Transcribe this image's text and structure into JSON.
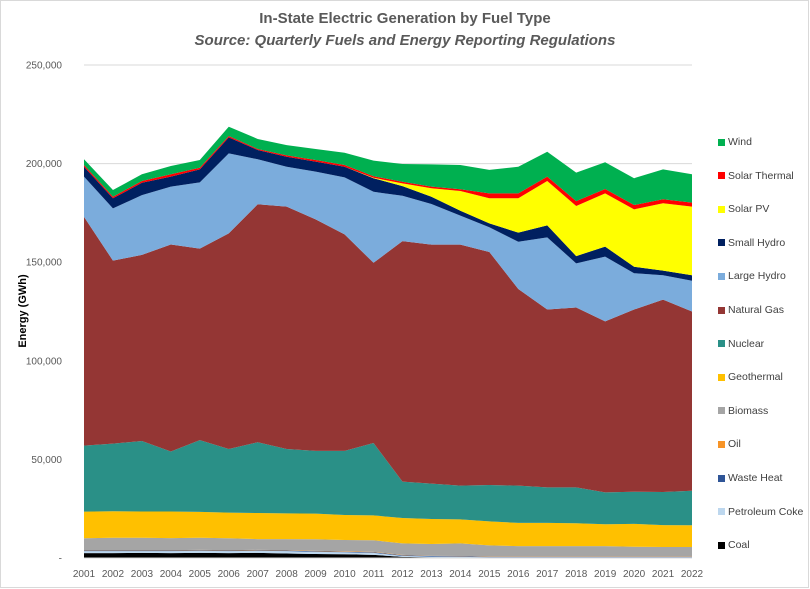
{
  "chart_data": {
    "type": "area",
    "stacked": true,
    "title": "In-State Electric Generation by Fuel Type",
    "subtitle": "Source: Quarterly Fuels and Energy Reporting Regulations",
    "xlabel": "",
    "ylabel": "Energy (GWh)",
    "ylim": [
      0,
      250000
    ],
    "yticks": [
      0,
      50000,
      100000,
      150000,
      200000,
      250000
    ],
    "ytick_labels": [
      "-",
      "50,000",
      "100,000",
      "150,000",
      "200,000",
      "250,000"
    ],
    "grid": true,
    "legend_position": "right",
    "categories": [
      "2001",
      "2002",
      "2003",
      "2004",
      "2005",
      "2006",
      "2007",
      "2008",
      "2009",
      "2010",
      "2011",
      "2012",
      "2013",
      "2014",
      "2015",
      "2016",
      "2017",
      "2018",
      "2019",
      "2020",
      "2021",
      "2022"
    ],
    "series": [
      {
        "name": "Coal",
        "color": "#000000",
        "values": [
          2500,
          2500,
          2600,
          2500,
          2600,
          2500,
          2600,
          2300,
          2000,
          1900,
          1600,
          600,
          300,
          200,
          100,
          100,
          100,
          100,
          100,
          100,
          100,
          100
        ]
      },
      {
        "name": "Petroleum Coke",
        "color": "#BDD7EE",
        "values": [
          1000,
          1000,
          900,
          1000,
          1000,
          1000,
          1000,
          1200,
          1100,
          1000,
          1000,
          500,
          400,
          400,
          300,
          300,
          300,
          300,
          300,
          300,
          300,
          300
        ]
      },
      {
        "name": "Waste Heat",
        "color": "#2F5597",
        "values": [
          300,
          300,
          300,
          300,
          300,
          300,
          300,
          300,
          300,
          300,
          300,
          300,
          300,
          300,
          200,
          200,
          200,
          200,
          200,
          200,
          200,
          200
        ]
      },
      {
        "name": "Oil",
        "color": "#F79427",
        "values": [
          200,
          200,
          200,
          200,
          200,
          200,
          200,
          200,
          200,
          200,
          200,
          200,
          100,
          100,
          100,
          100,
          100,
          100,
          100,
          100,
          100,
          100
        ]
      },
      {
        "name": "Biomass",
        "color": "#A5A5A5",
        "values": [
          6000,
          6300,
          6300,
          6100,
          6200,
          6000,
          5500,
          5600,
          5900,
          5700,
          5900,
          5800,
          6000,
          6400,
          5700,
          5300,
          5300,
          5300,
          5300,
          5000,
          4900,
          4900
        ]
      },
      {
        "name": "Geothermal",
        "color": "#FFC000",
        "values": [
          13500,
          13400,
          13300,
          13500,
          13100,
          13000,
          13200,
          13000,
          13000,
          12700,
          12600,
          12900,
          12700,
          12200,
          12200,
          11800,
          11800,
          11600,
          11100,
          11600,
          11100,
          11000
        ]
      },
      {
        "name": "Nuclear",
        "color": "#2A9087",
        "values": [
          33500,
          34300,
          35700,
          30400,
          36400,
          32300,
          35900,
          32700,
          31800,
          32500,
          36700,
          18400,
          17900,
          17100,
          18400,
          18900,
          18000,
          18200,
          16200,
          16300,
          16800,
          17500
        ]
      },
      {
        "name": "Natural Gas",
        "color": "#943634",
        "values": [
          116000,
          92800,
          94400,
          105000,
          97100,
          109300,
          120700,
          122900,
          117400,
          109800,
          91400,
          122000,
          121200,
          122200,
          118200,
          99700,
          90200,
          91200,
          86700,
          92400,
          97500,
          90900
        ]
      },
      {
        "name": "Large Hydro",
        "color": "#7BACDC",
        "values": [
          20400,
          26500,
          30300,
          29300,
          33600,
          40600,
          22800,
          20200,
          24200,
          28900,
          36000,
          23000,
          20600,
          14700,
          12500,
          24000,
          36600,
          22400,
          32800,
          18400,
          12400,
          15600
        ]
      },
      {
        "name": "Small Hydro",
        "color": "#002060",
        "values": [
          5000,
          5100,
          6300,
          5100,
          6600,
          8100,
          4700,
          5100,
          5100,
          5400,
          6900,
          4900,
          3700,
          2500,
          2000,
          4600,
          6100,
          3700,
          5100,
          3300,
          2300,
          2800
        ]
      },
      {
        "name": "Solar PV",
        "color": "#FFFF00",
        "values": [
          0,
          0,
          0,
          0,
          0,
          0,
          0,
          0,
          0,
          0,
          200,
          1400,
          4300,
          10000,
          12700,
          17400,
          22500,
          25400,
          27000,
          29100,
          34200,
          34800
        ]
      },
      {
        "name": "Solar Thermal",
        "color": "#FF0000",
        "values": [
          900,
          800,
          900,
          1200,
          800,
          700,
          500,
          700,
          800,
          900,
          800,
          800,
          800,
          900,
          2500,
          2500,
          2200,
          2500,
          2200,
          2200,
          2000,
          2000
        ]
      },
      {
        "name": "Wind",
        "color": "#00B050",
        "values": [
          2900,
          3400,
          3400,
          4200,
          3900,
          4700,
          5100,
          5200,
          5600,
          6200,
          7900,
          9000,
          11300,
          12300,
          11900,
          13500,
          12600,
          14400,
          13600,
          13600,
          15200,
          14400
        ]
      }
    ]
  }
}
